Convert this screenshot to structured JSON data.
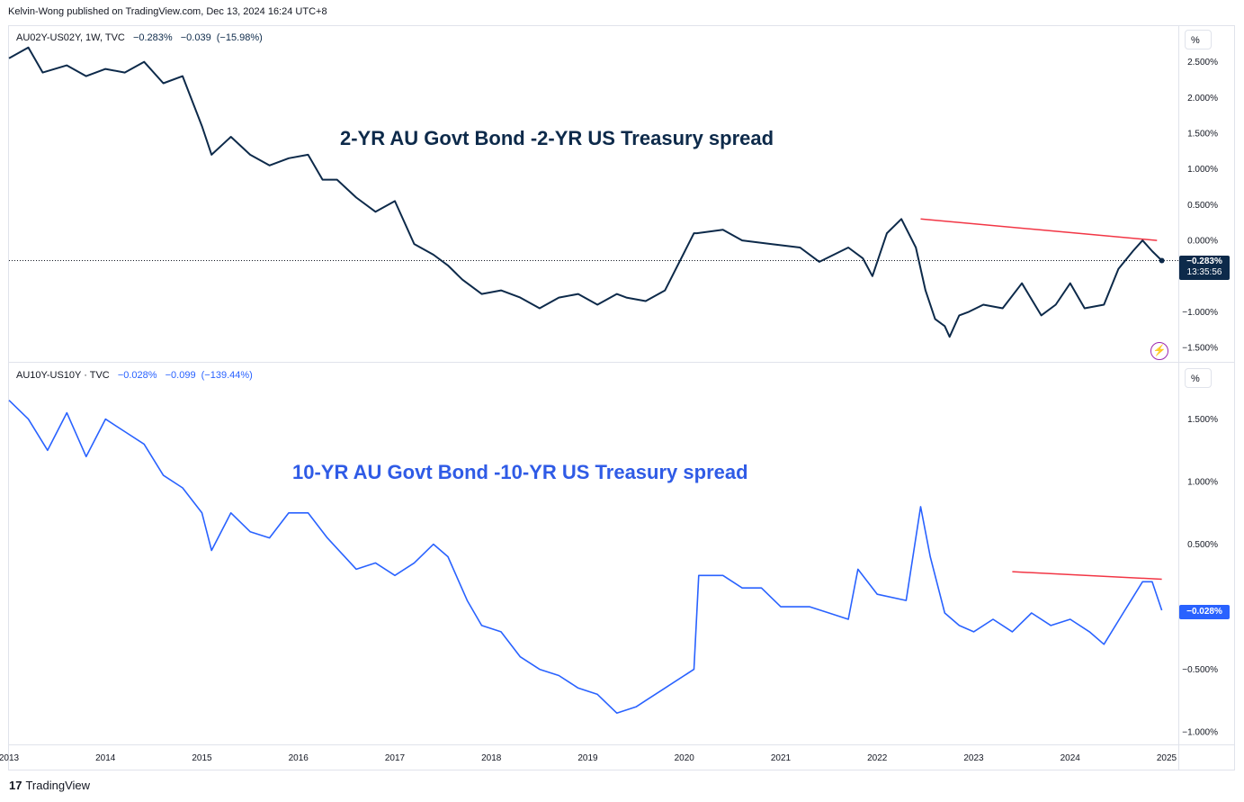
{
  "header": {
    "publisher": "Kelvin-Wong published on TradingView.com, Dec 13, 2024 16:24 UTC+8"
  },
  "footer": {
    "brand": "TradingView",
    "logo_mark": "17"
  },
  "colors": {
    "series_top": "#0d2a4a",
    "series_bottom": "#2962ff",
    "trendline": "#f23645",
    "grid": "#e0e3eb",
    "alert": "#9c27b0"
  },
  "icons": {
    "alert": "lightning-alert-icon",
    "logo": "tradingview-logo-icon"
  },
  "top": {
    "legend": {
      "symbol": "AU02Y-US02Y, 1W, TVC",
      "last": "−0.283%",
      "change": "−0.039",
      "change_pct": "(−15.98%)"
    },
    "scale_label": "%",
    "annotation": "2-YR AU Govt Bond -2-YR US Treasury spread",
    "price_tag": "−0.283%",
    "countdown": "13:35:56",
    "alert_symbol": "⚡"
  },
  "bottom": {
    "legend": {
      "symbol": "AU10Y-US10Y · TVC",
      "last": "−0.028%",
      "change": "−0.099",
      "change_pct": "(−139.44%)"
    },
    "scale_label": "%",
    "annotation": "10-YR AU Govt Bond -10-YR US Treasury spread",
    "price_tag": "−0.028%"
  },
  "chart_data": [
    {
      "type": "line",
      "title": "AU02Y-US02Y, 1W, TVC",
      "ylabel": "%",
      "ylim": [
        -1.7,
        3.0
      ],
      "yticks": [
        2.5,
        2.0,
        1.5,
        1.0,
        0.5,
        0.0,
        -1.0,
        -1.5
      ],
      "ytick_labels": [
        "2.500%",
        "2.000%",
        "1.500%",
        "1.000%",
        "0.500%",
        "0.000%",
        "−1.000%",
        "−1.500%"
      ],
      "x": [
        2013.0,
        2013.2,
        2013.35,
        2013.6,
        2013.8,
        2014.0,
        2014.2,
        2014.4,
        2014.6,
        2014.8,
        2015.0,
        2015.1,
        2015.3,
        2015.5,
        2015.7,
        2015.9,
        2016.1,
        2016.25,
        2016.4,
        2016.6,
        2016.8,
        2017.0,
        2017.2,
        2017.4,
        2017.55,
        2017.7,
        2017.9,
        2018.1,
        2018.3,
        2018.5,
        2018.7,
        2018.9,
        2019.1,
        2019.3,
        2019.4,
        2019.6,
        2019.8,
        2020.1,
        2020.13,
        2020.4,
        2020.6,
        2020.9,
        2021.2,
        2021.4,
        2021.7,
        2021.85,
        2021.95,
        2022.1,
        2022.25,
        2022.4,
        2022.5,
        2022.6,
        2022.7,
        2022.75,
        2022.85,
        2022.95,
        2023.1,
        2023.3,
        2023.5,
        2023.7,
        2023.85,
        2024.0,
        2024.15,
        2024.35,
        2024.5,
        2024.65,
        2024.75,
        2024.85,
        2024.95
      ],
      "y": [
        2.55,
        2.7,
        2.35,
        2.45,
        2.3,
        2.4,
        2.35,
        2.5,
        2.2,
        2.3,
        1.6,
        1.2,
        1.45,
        1.2,
        1.05,
        1.15,
        1.2,
        0.85,
        0.85,
        0.6,
        0.4,
        0.55,
        -0.05,
        -0.2,
        -0.35,
        -0.55,
        -0.75,
        -0.7,
        -0.8,
        -0.95,
        -0.8,
        -0.75,
        -0.9,
        -0.75,
        -0.8,
        -0.85,
        -0.7,
        0.1,
        0.1,
        0.15,
        0.0,
        -0.05,
        -0.1,
        -0.3,
        -0.1,
        -0.25,
        -0.5,
        0.1,
        0.3,
        -0.1,
        -0.7,
        -1.1,
        -1.2,
        -1.35,
        -1.05,
        -1.0,
        -0.9,
        -0.95,
        -0.6,
        -1.05,
        -0.9,
        -0.6,
        -0.95,
        -0.9,
        -0.4,
        -0.15,
        0.0,
        -0.15,
        -0.283
      ],
      "trendline": {
        "x": [
          2022.45,
          2024.9
        ],
        "y": [
          0.3,
          0.0
        ]
      },
      "last_value": -0.283
    },
    {
      "type": "line",
      "title": "AU10Y-US10Y · TVC",
      "ylabel": "%",
      "ylim": [
        -1.1,
        1.95
      ],
      "yticks": [
        1.5,
        1.0,
        0.5,
        -0.5,
        -1.0
      ],
      "ytick_labels": [
        "1.500%",
        "1.000%",
        "0.500%",
        "−0.500%",
        "−1.000%"
      ],
      "x": [
        2013.0,
        2013.2,
        2013.4,
        2013.6,
        2013.8,
        2014.0,
        2014.2,
        2014.4,
        2014.6,
        2014.8,
        2015.0,
        2015.1,
        2015.3,
        2015.5,
        2015.7,
        2015.9,
        2016.1,
        2016.3,
        2016.6,
        2016.8,
        2017.0,
        2017.2,
        2017.4,
        2017.55,
        2017.75,
        2017.9,
        2018.1,
        2018.3,
        2018.5,
        2018.7,
        2018.9,
        2019.1,
        2019.3,
        2019.5,
        2019.6,
        2019.8,
        2020.1,
        2020.15,
        2020.4,
        2020.6,
        2020.8,
        2021.0,
        2021.3,
        2021.5,
        2021.7,
        2021.8,
        2022.0,
        2022.3,
        2022.45,
        2022.55,
        2022.7,
        2022.85,
        2023.0,
        2023.2,
        2023.4,
        2023.6,
        2023.8,
        2024.0,
        2024.2,
        2024.35,
        2024.55,
        2024.75,
        2024.85,
        2024.95
      ],
      "y": [
        1.65,
        1.5,
        1.25,
        1.55,
        1.2,
        1.5,
        1.4,
        1.3,
        1.05,
        0.95,
        0.75,
        0.45,
        0.75,
        0.6,
        0.55,
        0.75,
        0.75,
        0.55,
        0.3,
        0.35,
        0.25,
        0.35,
        0.5,
        0.4,
        0.05,
        -0.15,
        -0.2,
        -0.4,
        -0.5,
        -0.55,
        -0.65,
        -0.7,
        -0.85,
        -0.8,
        -0.75,
        -0.65,
        -0.5,
        0.25,
        0.25,
        0.15,
        0.15,
        0.0,
        0.0,
        -0.05,
        -0.1,
        0.3,
        0.1,
        0.05,
        0.8,
        0.4,
        -0.05,
        -0.15,
        -0.2,
        -0.1,
        -0.2,
        -0.05,
        -0.15,
        -0.1,
        -0.2,
        -0.3,
        -0.05,
        0.2,
        0.2,
        -0.028
      ],
      "trendline": {
        "x": [
          2023.4,
          2024.95
        ],
        "y": [
          0.28,
          0.22
        ]
      },
      "last_value": -0.028
    }
  ],
  "x_axis": {
    "ticks": [
      2013,
      2014,
      2015,
      2016,
      2017,
      2018,
      2019,
      2020,
      2021,
      2022,
      2023,
      2024,
      2025
    ],
    "labels": [
      "2013",
      "2014",
      "2015",
      "2016",
      "2017",
      "2018",
      "2019",
      "2020",
      "2021",
      "2022",
      "2023",
      "2024",
      "2025"
    ]
  }
}
